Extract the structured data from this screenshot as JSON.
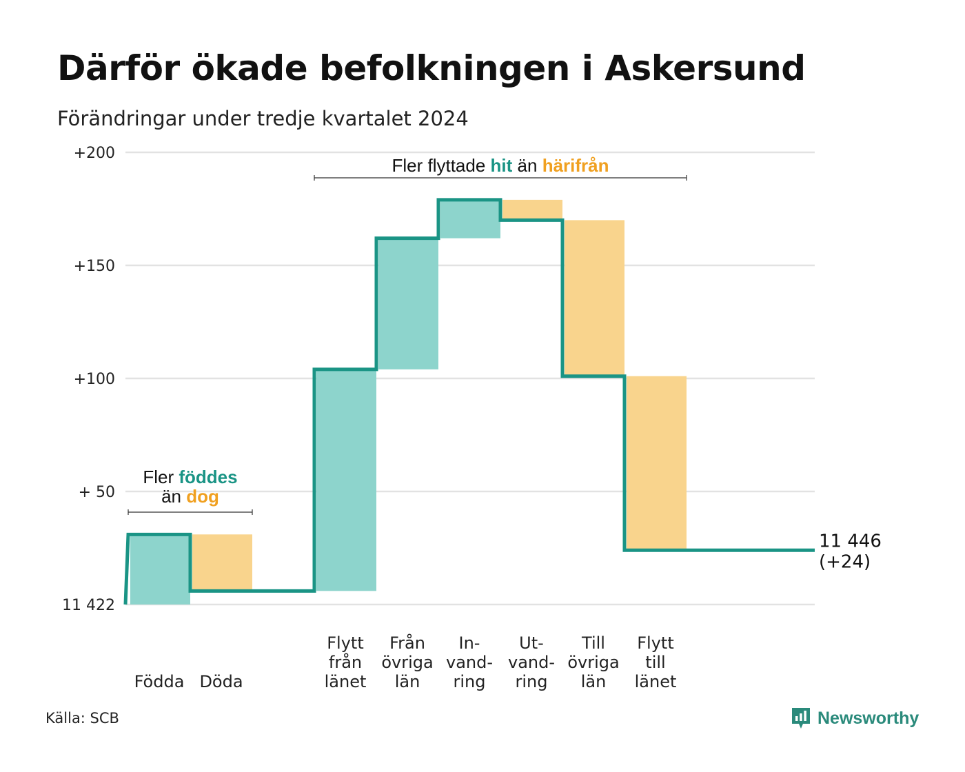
{
  "title": "Därför ökade befolkningen i Askersund",
  "subtitle": "Förändringar under tredje kvartalet 2024",
  "source": "Källa: SCB",
  "brand": "Newsworthy",
  "colors": {
    "increase": "#8dd4cc",
    "decrease": "#f9d48d",
    "line": "#1a9485",
    "accent_teal": "#1a9485",
    "accent_orange": "#f0a020",
    "grid": "#e2e2e2"
  },
  "chart_data": {
    "type": "waterfall",
    "base_value": 11422,
    "y_axis": {
      "ylim": [
        0,
        200
      ],
      "ticks": [
        0,
        50,
        100,
        150,
        200
      ],
      "tick_labels": [
        "11 422",
        "+ 50",
        "+100",
        "+150",
        "+200"
      ]
    },
    "steps": [
      {
        "label": "Födda",
        "value": 31,
        "kind": "increase"
      },
      {
        "label": "Döda",
        "value": -25,
        "kind": "decrease"
      },
      {
        "label": "",
        "value": 0,
        "kind": "spacer"
      },
      {
        "label": "Flytt\nfrån\nlänet",
        "value": 98,
        "kind": "increase"
      },
      {
        "label": "Från\növriga\nlän",
        "value": 58,
        "kind": "increase"
      },
      {
        "label": "In-\nvand-\nring",
        "value": 17,
        "kind": "increase"
      },
      {
        "label": "Ut-\nvand-\nring",
        "value": -9,
        "kind": "decrease"
      },
      {
        "label": "Till\növriga\nlän",
        "value": -69,
        "kind": "decrease"
      },
      {
        "label": "Flytt\ntill\nlänet",
        "value": -77,
        "kind": "decrease"
      },
      {
        "label": "",
        "value": 0,
        "kind": "spacer"
      }
    ],
    "end_value": 24,
    "end_label_line1": "11 446",
    "end_label_line2": "(+24)",
    "annotations": [
      {
        "id": "natural",
        "lines": [
          [
            {
              "text": "Fler ",
              "style": "plain"
            },
            {
              "text": "föddes",
              "style": "teal"
            }
          ],
          [
            {
              "text": "än ",
              "style": "plain"
            },
            {
              "text": "dog",
              "style": "orange"
            }
          ]
        ],
        "from_step": 0,
        "to_step": 1
      },
      {
        "id": "migration",
        "lines": [
          [
            {
              "text": "Fler flyttade ",
              "style": "plain"
            },
            {
              "text": "hit",
              "style": "teal"
            },
            {
              "text": " än ",
              "style": "plain"
            },
            {
              "text": "härifrån",
              "style": "orange"
            }
          ]
        ],
        "from_step": 3,
        "to_step": 8
      }
    ]
  }
}
